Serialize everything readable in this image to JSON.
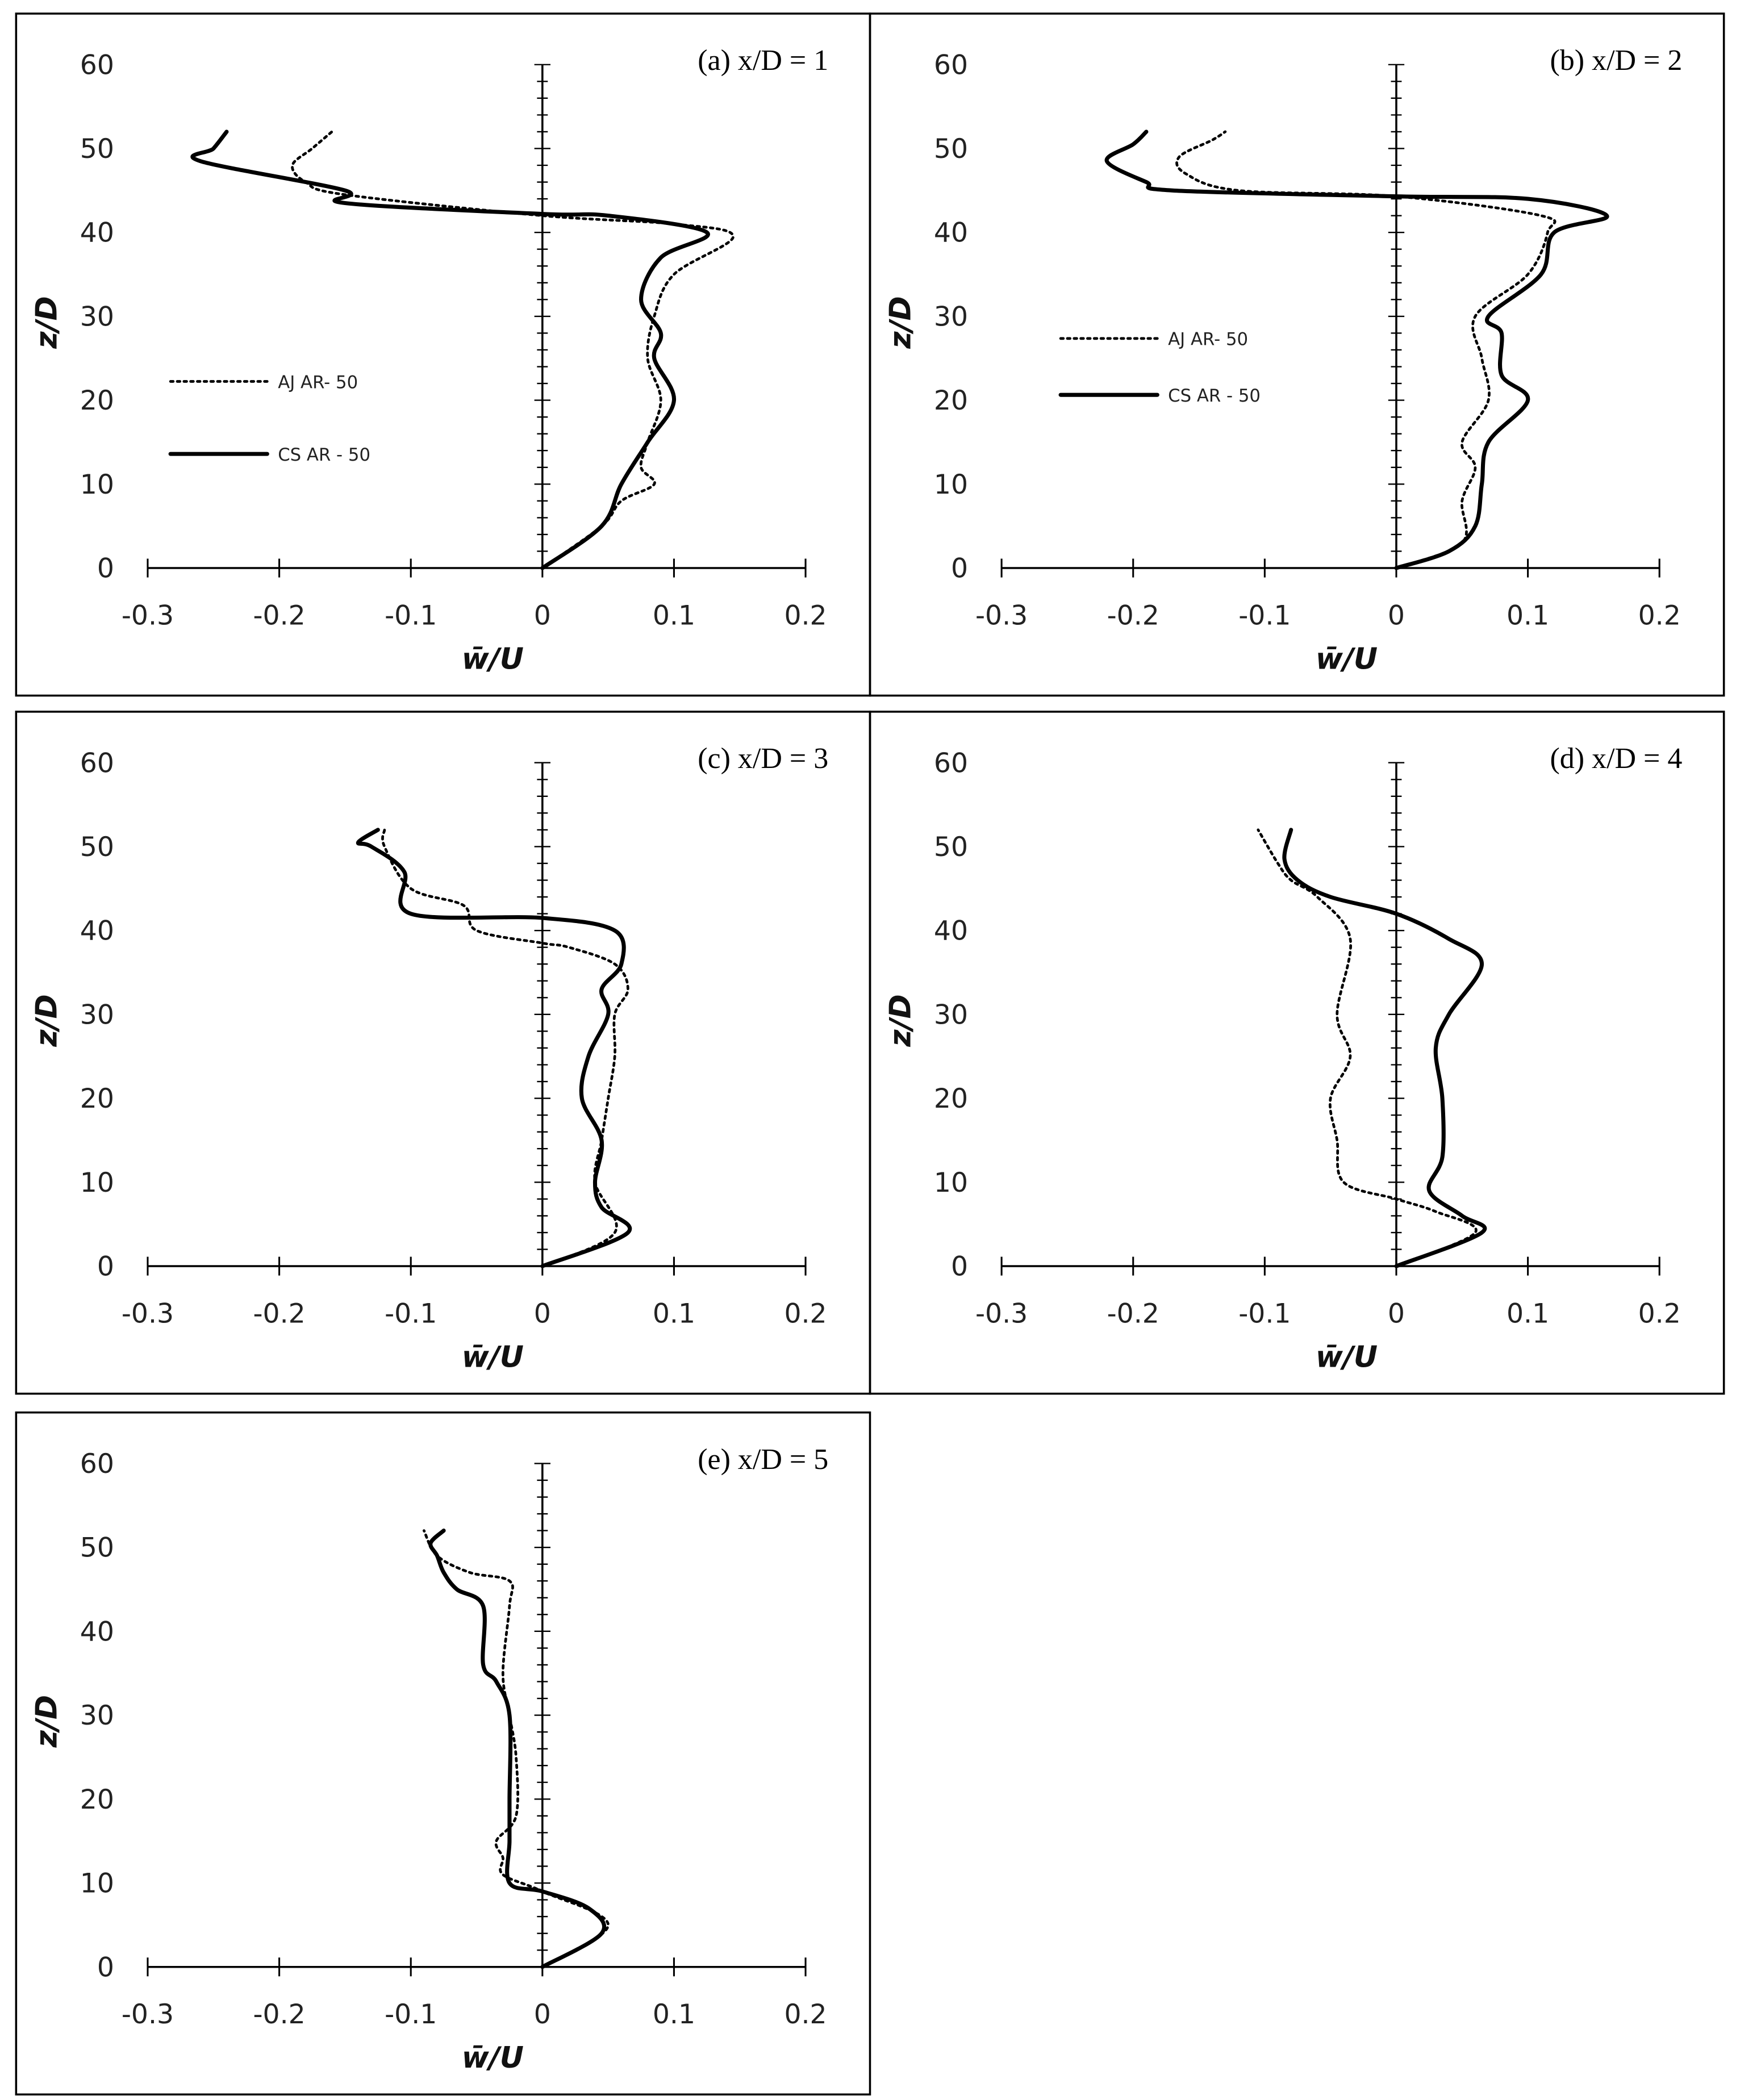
{
  "chart_data": [
    {
      "type": "line",
      "title": "(a) x/D = 1",
      "xlabel": "w̄/U",
      "ylabel": "z/D",
      "xlim": [
        -0.3,
        0.2
      ],
      "ylim": [
        0,
        60
      ],
      "xticks": [
        "-0.3",
        "-0.2",
        "-0.1",
        "0",
        "0.1",
        "0.2"
      ],
      "yticks": [
        "0",
        "10",
        "20",
        "30",
        "40",
        "50",
        "60"
      ],
      "grid": false,
      "legend": "left",
      "series": [
        {
          "name": "AJ AR- 50",
          "style": "dotted",
          "points": [
            [
              0,
              0
            ],
            [
              0.045,
              5
            ],
            [
              0.06,
              8
            ],
            [
              0.085,
              10
            ],
            [
              0.075,
              12
            ],
            [
              0.08,
              15
            ],
            [
              0.09,
              20
            ],
            [
              0.08,
              25
            ],
            [
              0.085,
              30
            ],
            [
              0.1,
              35
            ],
            [
              0.145,
              39.5
            ],
            [
              0.1,
              41
            ],
            [
              0,
              42
            ],
            [
              -0.15,
              44.5
            ],
            [
              -0.18,
              46
            ],
            [
              -0.19,
              48
            ],
            [
              -0.175,
              50
            ],
            [
              -0.16,
              52
            ]
          ]
        },
        {
          "name": "CS AR - 50",
          "style": "solid",
          "points": [
            [
              0,
              0
            ],
            [
              0.045,
              5
            ],
            [
              0.06,
              10
            ],
            [
              0.08,
              15
            ],
            [
              0.1,
              20
            ],
            [
              0.085,
              25
            ],
            [
              0.09,
              28
            ],
            [
              0.075,
              32
            ],
            [
              0.09,
              37
            ],
            [
              0.125,
              40
            ],
            [
              0.05,
              42
            ],
            [
              0,
              42.2
            ],
            [
              -0.15,
              43.5
            ],
            [
              -0.15,
              45
            ],
            [
              -0.26,
              48.5
            ],
            [
              -0.25,
              50
            ],
            [
              -0.24,
              52
            ]
          ]
        }
      ]
    },
    {
      "type": "line",
      "title": "(b) x/D = 2",
      "xlabel": "w̄/U",
      "ylabel": "z/D",
      "xlim": [
        -0.3,
        0.2
      ],
      "ylim": [
        0,
        60
      ],
      "xticks": [
        "-0.3",
        "-0.2",
        "-0.1",
        "0",
        "0.1",
        "0.2"
      ],
      "yticks": [
        "0",
        "10",
        "20",
        "30",
        "40",
        "50",
        "60"
      ],
      "grid": false,
      "legend": "left",
      "series": [
        {
          "name": "AJ AR- 50",
          "style": "dotted",
          "points": [
            [
              0,
              0
            ],
            [
              0.05,
              3
            ],
            [
              0.05,
              8
            ],
            [
              0.06,
              12
            ],
            [
              0.05,
              15
            ],
            [
              0.07,
              20
            ],
            [
              0.065,
              25
            ],
            [
              0.06,
              30
            ],
            [
              0.1,
              35
            ],
            [
              0.115,
              40
            ],
            [
              0.11,
              42
            ],
            [
              0,
              44.3
            ],
            [
              -0.12,
              45
            ],
            [
              -0.16,
              47
            ],
            [
              -0.165,
              49
            ],
            [
              -0.14,
              51
            ],
            [
              -0.13,
              52
            ]
          ]
        },
        {
          "name": "CS AR - 50",
          "style": "solid",
          "points": [
            [
              0,
              0
            ],
            [
              0.04,
              2
            ],
            [
              0.06,
              5
            ],
            [
              0.065,
              10
            ],
            [
              0.07,
              15
            ],
            [
              0.1,
              20
            ],
            [
              0.08,
              23
            ],
            [
              0.08,
              28
            ],
            [
              0.07,
              30
            ],
            [
              0.11,
              35
            ],
            [
              0.12,
              40
            ],
            [
              0.16,
              42
            ],
            [
              0.1,
              44
            ],
            [
              0,
              44.3
            ],
            [
              -0.17,
              45
            ],
            [
              -0.19,
              46
            ],
            [
              -0.22,
              48.5
            ],
            [
              -0.2,
              50.5
            ],
            [
              -0.19,
              52
            ]
          ]
        }
      ]
    },
    {
      "type": "line",
      "title": "(c) x/D = 3",
      "xlabel": "w̄/U",
      "ylabel": "z/D",
      "xlim": [
        -0.3,
        0.2
      ],
      "ylim": [
        0,
        60
      ],
      "xticks": [
        "-0.3",
        "-0.2",
        "-0.1",
        "0",
        "0.1",
        "0.2"
      ],
      "yticks": [
        "0",
        "10",
        "20",
        "30",
        "40",
        "50",
        "60"
      ],
      "grid": false,
      "series": [
        {
          "style": "dotted",
          "points": [
            [
              0,
              0
            ],
            [
              0.055,
              4
            ],
            [
              0.04,
              10
            ],
            [
              0.045,
              15
            ],
            [
              0.05,
              20
            ],
            [
              0.055,
              25
            ],
            [
              0.055,
              30
            ],
            [
              0.065,
              33
            ],
            [
              0.055,
              36
            ],
            [
              0.02,
              38
            ],
            [
              0,
              38.5
            ],
            [
              -0.05,
              40
            ],
            [
              -0.06,
              43
            ],
            [
              -0.1,
              45
            ],
            [
              -0.12,
              50
            ],
            [
              -0.12,
              52
            ]
          ]
        },
        {
          "style": "solid",
          "points": [
            [
              0,
              0
            ],
            [
              0.065,
              4
            ],
            [
              0.045,
              7
            ],
            [
              0.04,
              10
            ],
            [
              0.045,
              15
            ],
            [
              0.03,
              20
            ],
            [
              0.035,
              25
            ],
            [
              0.05,
              30
            ],
            [
              0.045,
              33
            ],
            [
              0.06,
              36
            ],
            [
              0.055,
              40
            ],
            [
              0,
              41.5
            ],
            [
              -0.1,
              42
            ],
            [
              -0.105,
              47
            ],
            [
              -0.13,
              50
            ],
            [
              -0.14,
              50.5
            ],
            [
              -0.125,
              52
            ]
          ]
        }
      ]
    },
    {
      "type": "line",
      "title": "(d) x/D = 4",
      "xlabel": "w̄/U",
      "ylabel": "z/D",
      "xlim": [
        -0.3,
        0.2
      ],
      "ylim": [
        0,
        60
      ],
      "xticks": [
        "-0.3",
        "-0.2",
        "-0.1",
        "0",
        "0.1",
        "0.2"
      ],
      "yticks": [
        "0",
        "10",
        "20",
        "30",
        "40",
        "50",
        "60"
      ],
      "grid": false,
      "series": [
        {
          "style": "dotted",
          "points": [
            [
              0,
              0
            ],
            [
              0.06,
              4
            ],
            [
              0.03,
              6.5
            ],
            [
              0,
              8
            ],
            [
              -0.04,
              10
            ],
            [
              -0.045,
              15
            ],
            [
              -0.05,
              20
            ],
            [
              -0.035,
              25
            ],
            [
              -0.045,
              30
            ],
            [
              -0.035,
              39
            ],
            [
              -0.06,
              44
            ],
            [
              -0.08,
              46
            ],
            [
              -0.09,
              48
            ],
            [
              -0.105,
              52
            ]
          ]
        },
        {
          "style": "solid",
          "points": [
            [
              0,
              0
            ],
            [
              0.065,
              4
            ],
            [
              0.05,
              6
            ],
            [
              0.025,
              9
            ],
            [
              0.035,
              13
            ],
            [
              0.035,
              20
            ],
            [
              0.03,
              26
            ],
            [
              0.04,
              30
            ],
            [
              0.065,
              36
            ],
            [
              0.04,
              39
            ],
            [
              0,
              42
            ],
            [
              -0.05,
              44
            ],
            [
              -0.075,
              46
            ],
            [
              -0.085,
              48.5
            ],
            [
              -0.08,
              52
            ]
          ]
        }
      ]
    },
    {
      "type": "line",
      "title": "(e) x/D = 5",
      "xlabel": "w̄/U",
      "ylabel": "z/D",
      "xlim": [
        -0.3,
        0.2
      ],
      "ylim": [
        0,
        60
      ],
      "xticks": [
        "-0.3",
        "-0.2",
        "-0.1",
        "0",
        "0.1",
        "0.2"
      ],
      "yticks": [
        "0",
        "10",
        "20",
        "30",
        "40",
        "50",
        "60"
      ],
      "grid": false,
      "series": [
        {
          "style": "dotted",
          "points": [
            [
              0,
              0
            ],
            [
              0.05,
              5
            ],
            [
              0,
              9
            ],
            [
              -0.03,
              11
            ],
            [
              -0.03,
              13
            ],
            [
              -0.035,
              15
            ],
            [
              -0.02,
              18
            ],
            [
              -0.02,
              25
            ],
            [
              -0.025,
              30
            ],
            [
              -0.03,
              35
            ],
            [
              -0.025,
              43
            ],
            [
              -0.025,
              46
            ],
            [
              -0.055,
              47
            ],
            [
              -0.08,
              49
            ],
            [
              -0.09,
              52
            ]
          ]
        },
        {
          "style": "solid",
          "points": [
            [
              0,
              0
            ],
            [
              0.045,
              4
            ],
            [
              0.035,
              7
            ],
            [
              0,
              9
            ],
            [
              -0.025,
              10
            ],
            [
              -0.025,
              15
            ],
            [
              -0.025,
              20
            ],
            [
              -0.025,
              30
            ],
            [
              -0.035,
              34
            ],
            [
              -0.045,
              36
            ],
            [
              -0.045,
              43
            ],
            [
              -0.065,
              45
            ],
            [
              -0.075,
              47
            ],
            [
              -0.08,
              49
            ],
            [
              -0.085,
              50.5
            ],
            [
              -0.075,
              52
            ]
          ]
        }
      ]
    }
  ]
}
